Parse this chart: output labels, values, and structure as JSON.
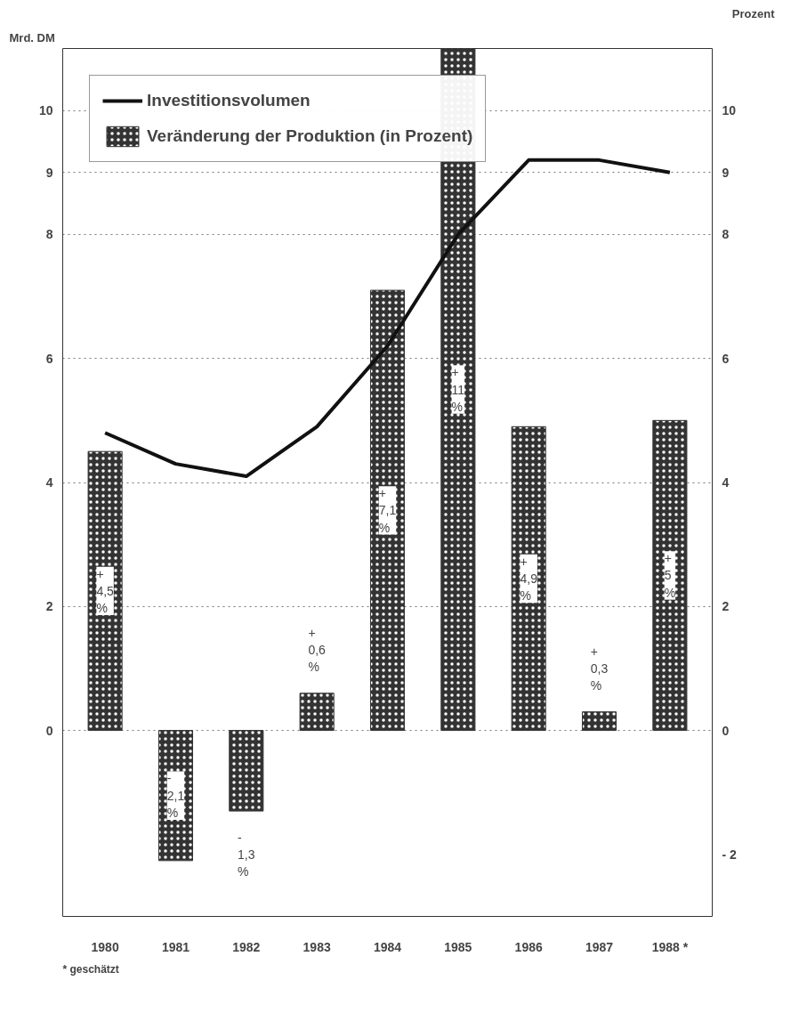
{
  "chart_data": {
    "type": "bar",
    "categories": [
      "1980",
      "1981",
      "1982",
      "1983",
      "1984",
      "1985",
      "1986",
      "1987",
      "1988 *"
    ],
    "ylabel": "Mrd. DM",
    "y2label": "Prozent",
    "ylim": [
      -3,
      11
    ],
    "yticks": [
      0,
      2,
      4,
      6,
      8,
      9,
      10
    ],
    "y2lim": [
      -3,
      11
    ],
    "y2ticks": [
      {
        "value": -2,
        "label": "- 2"
      },
      0,
      2,
      4,
      6,
      8,
      9,
      10
    ],
    "series": [
      {
        "name": "Veränderung der Produktion (in Prozent)",
        "color": "#333333",
        "values": [
          4.5,
          -2.1,
          -1.3,
          0.6,
          7.1,
          11,
          4.9,
          0.3,
          5
        ],
        "value_labels": [
          "+\n4,5\n%",
          "-\n2,1\n%",
          "-\n1,3\n%",
          "+\n0,6\n%",
          "+\n7,1\n%",
          "+\n11\n%",
          "+\n4,9\n%",
          "+\n0,3\n%",
          "+\n5\n%"
        ]
      },
      {
        "name": "Investitionsvolumen",
        "type": "line",
        "color": "#111111",
        "values": [
          4.8,
          4.3,
          4.1,
          4.9,
          6.2,
          8.0,
          9.2,
          9.2,
          9.0
        ]
      }
    ],
    "grid": "y",
    "legend": "top left",
    "line_style": "solid",
    "marker": "none",
    "annotations": [
      "* geschätzt"
    ]
  }
}
